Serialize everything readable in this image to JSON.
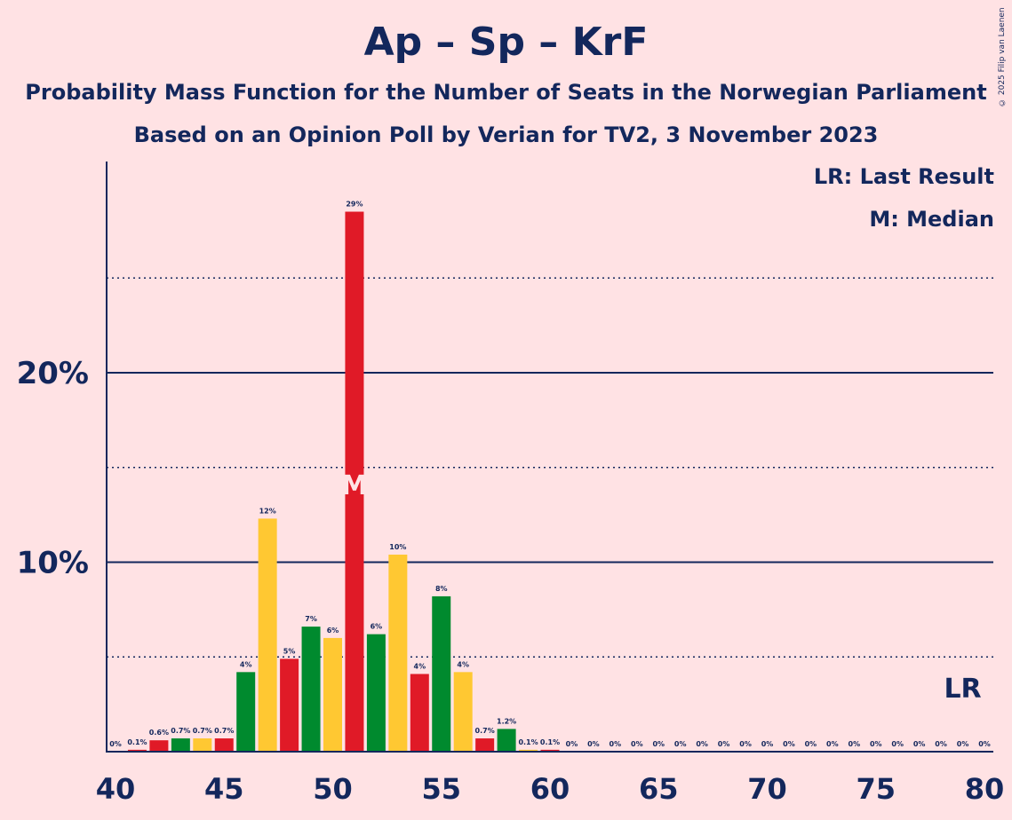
{
  "header": {
    "title": "Ap – Sp – KrF",
    "subtitle": "Probability Mass Function for the Number of Seats in the Norwegian Parliament",
    "subtitle2": "Based on an Opinion Poll by Verian for TV2, 3 November 2023",
    "copyright": "© 2025 Filip van Laenen"
  },
  "legend": {
    "last_result": "LR: Last Result",
    "median": "M: Median"
  },
  "colors": {
    "red": "#e01a27",
    "green": "#008a2e",
    "yellow": "#ffc832",
    "text": "#13275c",
    "background": "#ffe2e4",
    "median_marker": "#ffe2e4"
  },
  "chart_data": {
    "type": "bar",
    "x": [
      40,
      41,
      42,
      43,
      44,
      45,
      46,
      47,
      48,
      49,
      50,
      51,
      52,
      53,
      54,
      55,
      56,
      57,
      58,
      59,
      60,
      61,
      62,
      63,
      64,
      65,
      66,
      67,
      68,
      69,
      70,
      71,
      72,
      73,
      74,
      75,
      76,
      77,
      78,
      79,
      80
    ],
    "values": [
      0,
      0.1,
      0.6,
      0.7,
      0.7,
      0.7,
      4.2,
      12.3,
      4.9,
      6.6,
      6.0,
      28.5,
      6.2,
      10.4,
      4.1,
      8.2,
      4.2,
      0.7,
      1.2,
      0.1,
      0.1,
      0,
      0,
      0,
      0,
      0,
      0,
      0,
      0,
      0,
      0,
      0,
      0,
      0,
      0,
      0,
      0,
      0,
      0,
      0,
      0
    ],
    "labels": [
      "0%",
      "0.1%",
      "0.6%",
      "0.7%",
      "0.7%",
      "0.7%",
      "4%",
      "12%",
      "5%",
      "7%",
      "6%",
      "29%",
      "6%",
      "10%",
      "4%",
      "8%",
      "4%",
      "0.7%",
      "1.2%",
      "0.1%",
      "0.1%",
      "0%",
      "0%",
      "0%",
      "0%",
      "0%",
      "0%",
      "0%",
      "0%",
      "0%",
      "0%",
      "0%",
      "0%",
      "0%",
      "0%",
      "0%",
      "0%",
      "0%",
      "0%",
      "0%",
      "0%"
    ],
    "bar_colors": [
      "red",
      "red",
      "red",
      "green",
      "yellow",
      "red",
      "green",
      "yellow",
      "red",
      "green",
      "yellow",
      "red",
      "green",
      "yellow",
      "red",
      "green",
      "yellow",
      "red",
      "green",
      "yellow",
      "red",
      "green",
      "yellow",
      "red",
      "green",
      "yellow",
      "red",
      "green",
      "yellow",
      "red",
      "green",
      "yellow",
      "red",
      "green",
      "yellow",
      "red",
      "green",
      "yellow",
      "red",
      "green",
      "yellow"
    ],
    "xticks": [
      40,
      45,
      50,
      55,
      60,
      65,
      70,
      75,
      80
    ],
    "xtick_labels": [
      "40",
      "45",
      "50",
      "55",
      "60",
      "65",
      "70",
      "75",
      "80"
    ],
    "yticks_major": [
      10,
      20
    ],
    "ytick_labels": [
      "10%",
      "20%"
    ],
    "yticks_minor": [
      5,
      15,
      25
    ],
    "ylim": [
      0,
      31
    ],
    "median": {
      "x": 51,
      "label": "M"
    },
    "last_result": {
      "x": 79,
      "label": "LR"
    }
  }
}
